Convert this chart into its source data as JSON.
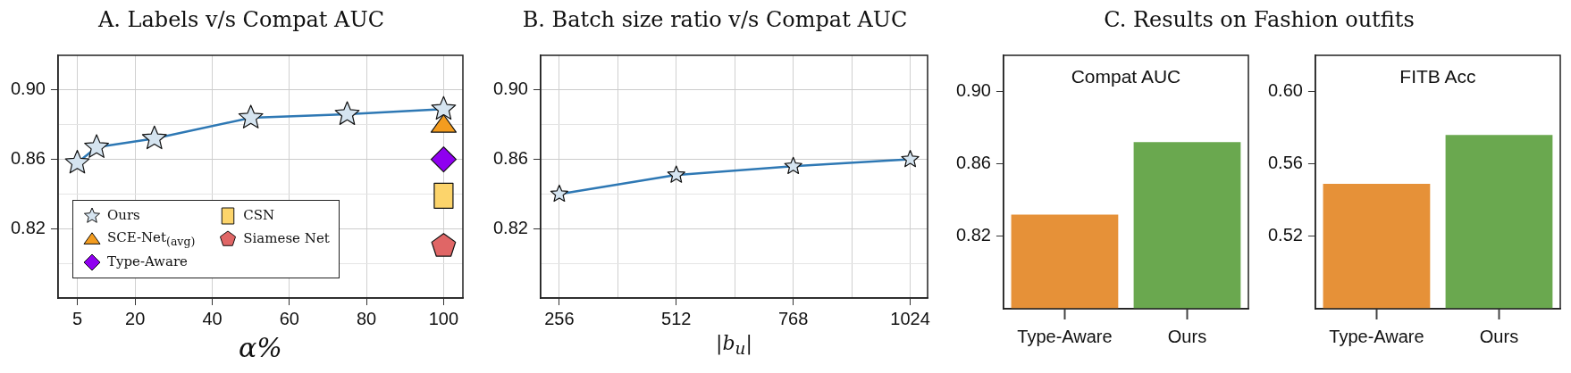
{
  "chart_data": [
    {
      "type": "line",
      "title": "A. Labels v/s Compat AUC",
      "xlabel": "α%",
      "xlim": [
        0,
        105
      ],
      "xticks": [
        5,
        20,
        40,
        60,
        80,
        100
      ],
      "ylim": [
        0.78,
        0.92
      ],
      "yticks": [
        {
          "value": 0.8,
          "label": null
        },
        0.82,
        {
          "value": 0.84,
          "label": null
        },
        0.86,
        {
          "value": 0.88,
          "label": null
        },
        {
          "value": 0.9,
          "label": "0.90"
        }
      ],
      "grid": true,
      "legend": "bottom left",
      "series": [
        {
          "name": "Ours",
          "type": "line",
          "marker": "star",
          "color": "#2e78b4",
          "x": [
            5,
            10,
            25,
            50,
            75,
            100
          ],
          "values": [
            0.858,
            0.867,
            0.872,
            0.884,
            0.886,
            0.889
          ]
        },
        {
          "name": "SCE-Net$_{(avg)}$",
          "type": "scatter",
          "marker": "triangle",
          "color": "#f39c1f",
          "x": [
            100
          ],
          "values": [
            0.88
          ]
        },
        {
          "name": "Type-Aware",
          "type": "scatter",
          "marker": "diamond",
          "color": "#8f00f0",
          "x": [
            100
          ],
          "values": [
            0.86
          ]
        },
        {
          "name": "CSN",
          "type": "scatter",
          "marker": "square",
          "color": "#fcd46b",
          "x": [
            100
          ],
          "values": [
            0.839
          ]
        },
        {
          "name": "Siamese Net",
          "type": "scatter",
          "color": "#e06666",
          "x": [
            100
          ],
          "values": [
            0.81
          ]
        }
      ]
    },
    {
      "type": "line",
      "title": "B. Batch size ratio v/s Compat AUC",
      "xlabel": "|b$_{u}$|",
      "xlim": [
        215,
        1062
      ],
      "xticks": [
        256,
        {
          "value": 384,
          "label": null
        },
        512,
        {
          "value": 640,
          "label": null
        },
        768,
        {
          "value": 896,
          "label": null
        },
        1024
      ],
      "ylim": [
        0.78,
        0.92
      ],
      "yticks": [
        {
          "value": 0.8,
          "label": null
        },
        0.82,
        {
          "value": 0.84,
          "label": null
        },
        0.86,
        {
          "value": 0.88,
          "label": null
        },
        {
          "value": 0.9,
          "label": "0.90"
        }
      ],
      "grid": true,
      "series": [
        {
          "type": "line",
          "marker": "star",
          "color": "#2e78b4",
          "x": [
            256,
            512,
            768,
            1024
          ],
          "values": [
            0.84,
            0.851,
            0.856,
            0.86
          ]
        }
      ]
    },
    {
      "type": "bar",
      "title": "C. Results on Fashion outfits",
      "subtitle": "Compat AUC",
      "categories": [
        "Type-Aware",
        "Ours"
      ],
      "values": [
        0.832,
        0.872
      ],
      "colors": [
        "#e69138",
        "#6aa84f"
      ],
      "ylim": [
        0.78,
        0.92
      ],
      "yticks": [
        {
          "value": 0.9,
          "label": "0.90"
        },
        0.86,
        0.82
      ]
    },
    {
      "type": "bar",
      "subtitle": "FITB Acc",
      "categories": [
        "Type-Aware",
        "Ours"
      ],
      "values": [
        0.549,
        0.576
      ],
      "colors": [
        "#e69138",
        "#6aa84f"
      ],
      "ylim": [
        0.48,
        0.62
      ],
      "yticks": [
        {
          "value": 0.6,
          "label": "0.60"
        },
        0.56,
        0.52
      ]
    }
  ]
}
